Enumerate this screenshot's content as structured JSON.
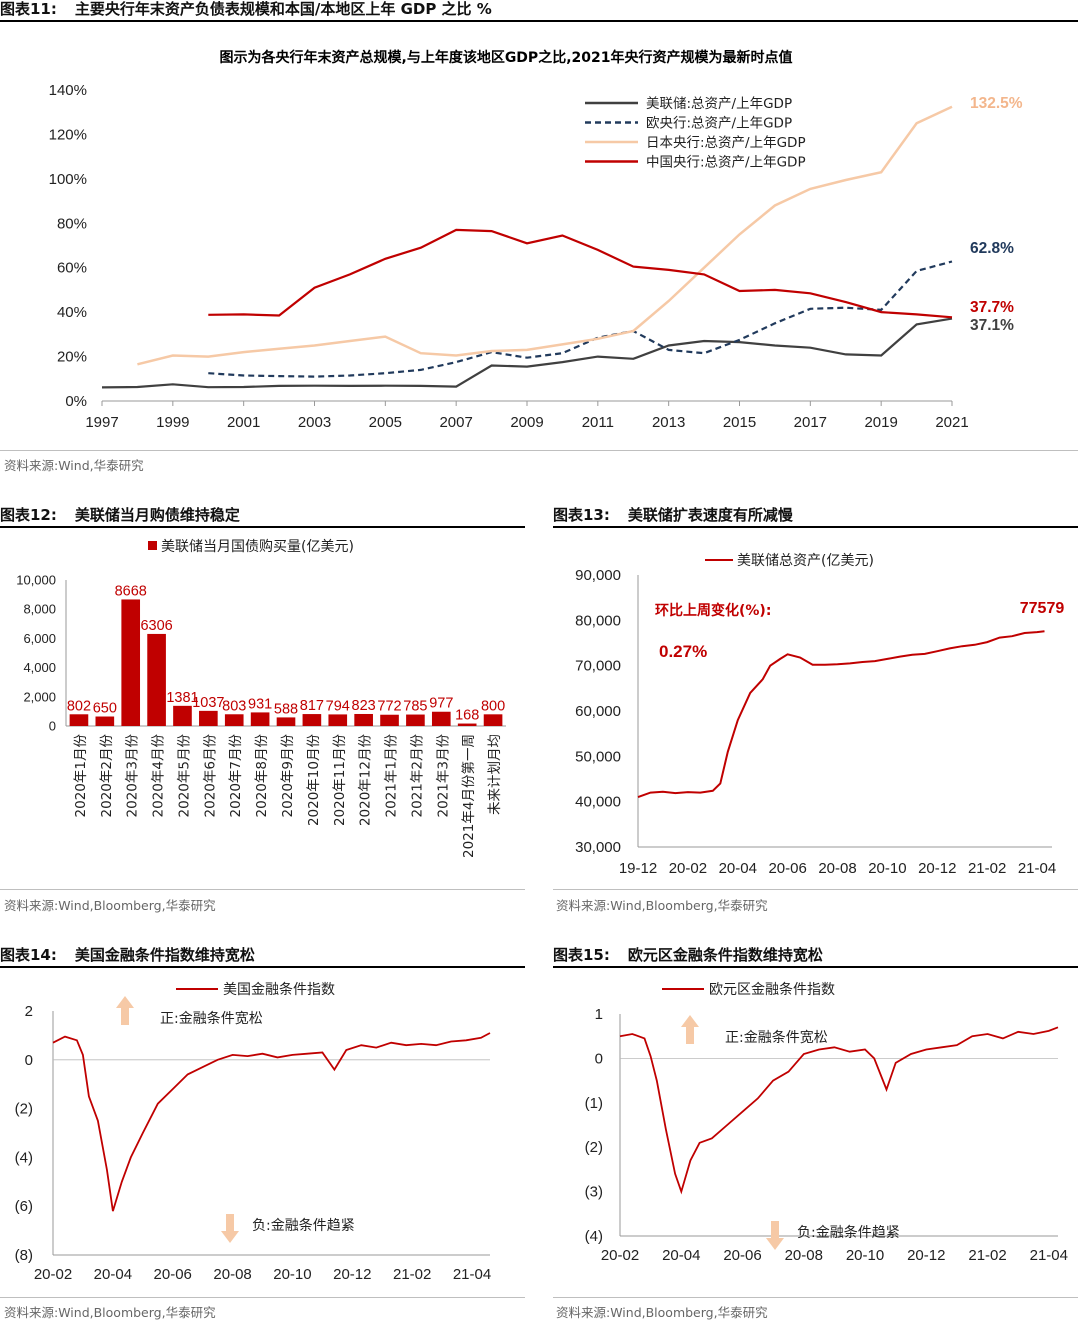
{
  "fig11": {
    "header_num": "图表11:",
    "header_title": "主要央行年末资产负债表规模和本国/本地区上年 GDP 之比  %",
    "source": "资料来源:Wind,华泰研究",
    "chart_data": {
      "type": "line",
      "title": "图示为各央行年末资产总规模,与上年度该地区GDP之比,2021年央行资产规模为最新时点值",
      "xlabel": "",
      "ylabel": "",
      "xlim": [
        1997,
        2021
      ],
      "ylim": [
        0,
        140
      ],
      "x_ticks": [
        "1997",
        "1999",
        "2001",
        "2003",
        "2005",
        "2007",
        "2009",
        "2011",
        "2013",
        "2015",
        "2017",
        "2019",
        "2021"
      ],
      "y_ticks": [
        "0%",
        "20%",
        "40%",
        "60%",
        "80%",
        "100%",
        "120%",
        "140%"
      ],
      "legend_position": "top-center",
      "series": [
        {
          "name": "美联储:总资产/上年GDP",
          "color": "#404040",
          "style": "solid",
          "x": [
            1997,
            1998,
            1999,
            2000,
            2001,
            2002,
            2003,
            2004,
            2005,
            2006,
            2007,
            2008,
            2009,
            2010,
            2011,
            2012,
            2013,
            2014,
            2015,
            2016,
            2017,
            2018,
            2019,
            2020,
            2021
          ],
          "values": [
            6.1,
            6.3,
            7.5,
            6.2,
            6.3,
            6.8,
            6.9,
            6.8,
            6.9,
            6.8,
            6.5,
            16,
            15.5,
            17.5,
            20,
            19,
            25,
            27,
            26.5,
            25,
            24,
            21,
            20.5,
            34.5,
            37.1
          ],
          "end_label": "37.1%",
          "label_color": "#404040"
        },
        {
          "name": "欧央行:总资产/上年GDP",
          "color": "#213a5c",
          "style": "dashed",
          "x": [
            2000,
            2001,
            2002,
            2003,
            2004,
            2005,
            2006,
            2007,
            2008,
            2009,
            2010,
            2011,
            2012,
            2013,
            2014,
            2015,
            2016,
            2017,
            2018,
            2019,
            2020,
            2021
          ],
          "values": [
            12.5,
            11.5,
            11.2,
            11,
            11.5,
            12.5,
            14,
            17.5,
            22,
            19.5,
            21.5,
            28.5,
            31.5,
            23,
            21.5,
            27.5,
            35,
            41.5,
            42,
            41,
            58.5,
            62.8
          ],
          "end_label": "62.8%",
          "label_color": "#213a5c"
        },
        {
          "name": "日本央行:总资产/上年GDP",
          "color": "#f6c9a6",
          "style": "solid",
          "x": [
            1998,
            1999,
            2000,
            2001,
            2002,
            2003,
            2004,
            2005,
            2006,
            2007,
            2008,
            2009,
            2010,
            2011,
            2012,
            2013,
            2014,
            2015,
            2016,
            2017,
            2018,
            2019,
            2020,
            2021
          ],
          "values": [
            16.5,
            20.5,
            20,
            22,
            23.5,
            25,
            27,
            29,
            21.5,
            20.5,
            22.5,
            23,
            25.5,
            28,
            31.5,
            45,
            60,
            75,
            88,
            95.5,
            99.5,
            103,
            125,
            132.5
          ],
          "end_label": "132.5%",
          "label_color": "#f3b68c"
        },
        {
          "name": "中国央行:总资产/上年GDP",
          "color": "#c00000",
          "style": "solid",
          "x": [
            2000,
            2001,
            2002,
            2003,
            2004,
            2005,
            2006,
            2007,
            2008,
            2009,
            2010,
            2011,
            2012,
            2013,
            2014,
            2015,
            2016,
            2017,
            2018,
            2019,
            2020,
            2021
          ],
          "values": [
            38.8,
            39,
            38.5,
            51,
            57,
            64,
            69,
            77,
            76.5,
            71,
            74.5,
            68,
            60.5,
            59,
            57,
            49.5,
            50,
            48.5,
            44.5,
            40,
            39,
            37.7
          ],
          "end_label": "37.7%",
          "label_color": "#c00000"
        }
      ]
    }
  },
  "fig12": {
    "header_num": "图表12:",
    "header_title": "美联储当月购债维持稳定",
    "source": "资料来源:Wind,Bloomberg,华泰研究",
    "chart_data": {
      "type": "bar",
      "legend": "美联储当月国债购买量(亿美元)",
      "color": "#c00000",
      "ylim": [
        0,
        10000
      ],
      "y_ticks": [
        "0",
        "2,000",
        "4,000",
        "6,000",
        "8,000",
        "10,000"
      ],
      "categories": [
        "2020年1月份",
        "2020年2月份",
        "2020年3月份",
        "2020年4月份",
        "2020年5月份",
        "2020年6月份",
        "2020年7月份",
        "2020年8月份",
        "2020年9月份",
        "2020年10月份",
        "2020年11月份",
        "2020年12月份",
        "2021年1月份",
        "2021年2月份",
        "2021年3月份",
        "2021年4月份第一周",
        "未来计划月均"
      ],
      "values": [
        802,
        650,
        8668,
        6306,
        1381,
        1037,
        803,
        931,
        588,
        817,
        794,
        823,
        772,
        785,
        977,
        168,
        800
      ],
      "data_labels": [
        "802",
        "650",
        "8668",
        "6306",
        "1381",
        "1037",
        "803",
        "931",
        "588",
        "817",
        "794",
        "823",
        "772",
        "785",
        "977",
        "168",
        "800"
      ]
    }
  },
  "fig13": {
    "header_num": "图表13:",
    "header_title": "美联储扩表速度有所减慢",
    "source": "资料来源:Wind,Bloomberg,华泰研究",
    "annotation_label": "环比上周变化(%):",
    "annotation_value": "0.27%",
    "end_label": "77579",
    "chart_data": {
      "type": "line",
      "legend": "美联储总资产(亿美元)",
      "color": "#c00000",
      "ylim": [
        30000,
        90000
      ],
      "y_ticks": [
        "30,000",
        "40,000",
        "50,000",
        "60,000",
        "70,000",
        "80,000",
        "90,000"
      ],
      "x_ticks": [
        "19-12",
        "20-02",
        "20-04",
        "20-06",
        "20-08",
        "20-10",
        "20-12",
        "21-02",
        "21-04"
      ],
      "xlim": [
        0,
        16.3
      ],
      "x": [
        0,
        0.5,
        1,
        1.5,
        2,
        2.5,
        3,
        3.3,
        3.6,
        4,
        4.5,
        5,
        5.3,
        5.7,
        6,
        6.5,
        7,
        7.5,
        8,
        8.5,
        9,
        9.5,
        10,
        10.5,
        11,
        11.5,
        12,
        12.5,
        13,
        13.5,
        14,
        14.5,
        15,
        15.5,
        16,
        16.3
      ],
      "values": [
        41000,
        42000,
        42200,
        41900,
        42100,
        42000,
        42400,
        44000,
        51000,
        58000,
        64000,
        67000,
        70000,
        71500,
        72500,
        71800,
        70200,
        70200,
        70300,
        70500,
        70800,
        71000,
        71500,
        72000,
        72400,
        72600,
        73200,
        73800,
        74300,
        74600,
        75200,
        76200,
        76500,
        77200,
        77400,
        77579
      ]
    }
  },
  "fig14": {
    "header_num": "图表14:",
    "header_title": "美国金融条件指数维持宽松",
    "source": "资料来源:Wind,Bloomberg,华泰研究",
    "note_up": "正:金融条件宽松",
    "note_down": "负:金融条件趋紧",
    "chart_data": {
      "type": "line",
      "legend": "美国金融条件指数",
      "color": "#c00000",
      "ylim": [
        -8,
        2
      ],
      "y_ticks": [
        "(8)",
        "(6)",
        "(4)",
        "(2)",
        "0",
        "2"
      ],
      "x_ticks": [
        "20-02",
        "20-04",
        "20-06",
        "20-08",
        "20-10",
        "20-12",
        "21-02",
        "21-04"
      ],
      "xlim": [
        0,
        14.6
      ],
      "x": [
        0,
        0.4,
        0.8,
        1,
        1.2,
        1.5,
        1.8,
        2,
        2.3,
        2.6,
        3,
        3.5,
        4,
        4.5,
        5,
        5.5,
        6,
        6.5,
        7,
        7.5,
        8,
        8.5,
        9,
        9.4,
        9.8,
        10.3,
        10.8,
        11.3,
        11.8,
        12.3,
        12.8,
        13.3,
        13.8,
        14.3,
        14.6
      ],
      "values": [
        0.7,
        0.95,
        0.8,
        0.2,
        -1.5,
        -2.5,
        -4.5,
        -6.2,
        -5,
        -4,
        -3,
        -1.8,
        -1.2,
        -0.6,
        -0.3,
        0,
        0.2,
        0.15,
        0.25,
        0.1,
        0.2,
        0.25,
        0.3,
        -0.4,
        0.4,
        0.6,
        0.5,
        0.7,
        0.6,
        0.65,
        0.6,
        0.75,
        0.8,
        0.9,
        1.1
      ]
    }
  },
  "fig15": {
    "header_num": "图表15:",
    "header_title": "欧元区金融条件指数维持宽松",
    "source": "资料来源:Wind,Bloomberg,华泰研究",
    "note_up": "正:金融条件宽松",
    "note_down": "负:金融条件趋紧",
    "chart_data": {
      "type": "line",
      "legend": "欧元区金融条件指数",
      "color": "#c00000",
      "ylim": [
        -4,
        1
      ],
      "y_ticks": [
        "(4)",
        "(3)",
        "(2)",
        "(1)",
        "0",
        "1"
      ],
      "x_ticks": [
        "20-02",
        "20-04",
        "20-06",
        "20-08",
        "20-10",
        "20-12",
        "21-02",
        "21-04"
      ],
      "xlim": [
        0,
        14.3
      ],
      "x": [
        0,
        0.4,
        0.8,
        1,
        1.2,
        1.5,
        1.8,
        2,
        2.3,
        2.6,
        3,
        3.5,
        4,
        4.5,
        5,
        5.5,
        6,
        6.5,
        7,
        7.5,
        8,
        8.3,
        8.7,
        9,
        9.5,
        10,
        10.5,
        11,
        11.5,
        12,
        12.5,
        13,
        13.5,
        14,
        14.3
      ],
      "values": [
        0.5,
        0.55,
        0.45,
        0.05,
        -0.5,
        -1.6,
        -2.6,
        -3,
        -2.3,
        -1.9,
        -1.8,
        -1.5,
        -1.2,
        -0.9,
        -0.5,
        -0.3,
        0.1,
        0.2,
        0.25,
        0.15,
        0.2,
        0,
        -0.7,
        -0.1,
        0.1,
        0.2,
        0.25,
        0.3,
        0.5,
        0.55,
        0.45,
        0.6,
        0.55,
        0.62,
        0.7
      ]
    }
  }
}
